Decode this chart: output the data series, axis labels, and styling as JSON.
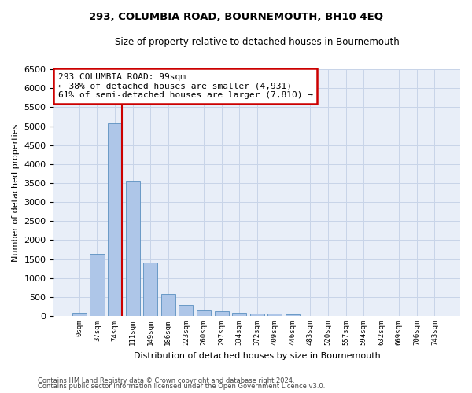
{
  "title": "293, COLUMBIA ROAD, BOURNEMOUTH, BH10 4EQ",
  "subtitle": "Size of property relative to detached houses in Bournemouth",
  "xlabel": "Distribution of detached houses by size in Bournemouth",
  "ylabel": "Number of detached properties",
  "footer_line1": "Contains HM Land Registry data © Crown copyright and database right 2024.",
  "footer_line2": "Contains public sector information licensed under the Open Government Licence v3.0.",
  "bar_labels": [
    "0sqm",
    "37sqm",
    "74sqm",
    "111sqm",
    "149sqm",
    "186sqm",
    "223sqm",
    "260sqm",
    "297sqm",
    "334sqm",
    "372sqm",
    "409sqm",
    "446sqm",
    "483sqm",
    "520sqm",
    "557sqm",
    "594sqm",
    "632sqm",
    "669sqm",
    "706sqm",
    "743sqm"
  ],
  "bar_values": [
    75,
    1630,
    5080,
    3570,
    1410,
    590,
    295,
    150,
    120,
    90,
    65,
    55,
    50,
    0,
    0,
    0,
    0,
    0,
    0,
    0,
    0
  ],
  "bar_color": "#aec6e8",
  "bar_edge_color": "#5a90c0",
  "highlight_color": "#cc0000",
  "annotation_line1": "293 COLUMBIA ROAD: 99sqm",
  "annotation_line2": "← 38% of detached houses are smaller (4,931)",
  "annotation_line3": "61% of semi-detached houses are larger (7,810) →",
  "annotation_box_color": "#cc0000",
  "ylim": [
    0,
    6500
  ],
  "yticks": [
    0,
    500,
    1000,
    1500,
    2000,
    2500,
    3000,
    3500,
    4000,
    4500,
    5000,
    5500,
    6000,
    6500
  ],
  "grid_color": "#c8d4e8",
  "background_color": "#e8eef8"
}
